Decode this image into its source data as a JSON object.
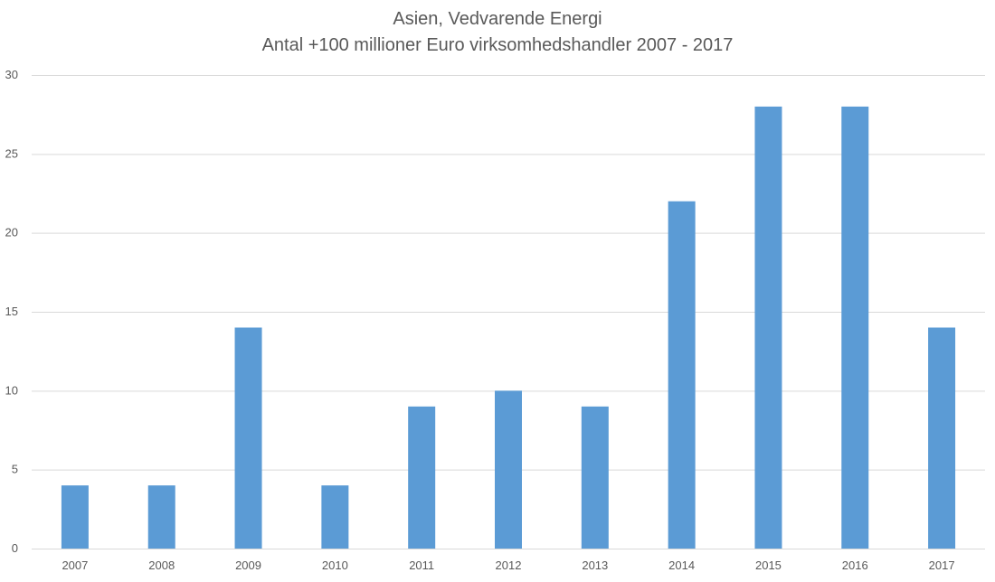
{
  "chart_data": {
    "type": "bar",
    "title": "Asien, Vedvarende Energi",
    "subtitle": "Antal +100 millioner Euro virksomhedshandler 2007 - 2017",
    "xlabel": "",
    "ylabel": "",
    "categories": [
      "2007",
      "2008",
      "2009",
      "2010",
      "2011",
      "2012",
      "2013",
      "2014",
      "2015",
      "2016",
      "2017"
    ],
    "values": [
      4,
      4,
      14,
      4,
      9,
      10,
      9,
      22,
      28,
      28,
      14
    ],
    "ylim": [
      0,
      30
    ],
    "yticks": [
      0,
      5,
      10,
      15,
      20,
      25,
      30
    ],
    "grid": true,
    "legend": "none",
    "bar_color": "#5b9bd5",
    "grid_color": "#d9d9d9",
    "text_color": "#595959"
  }
}
